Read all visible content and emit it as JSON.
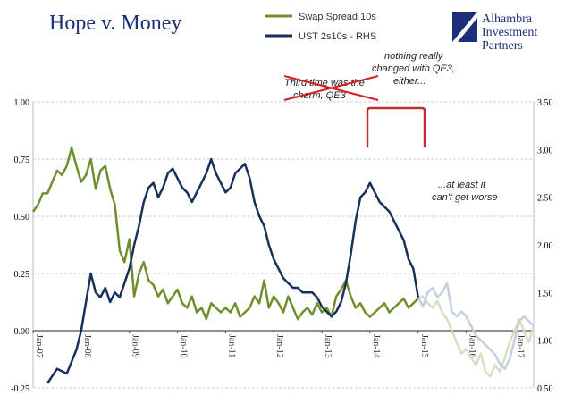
{
  "chart_data": {
    "type": "line",
    "title": "Hope v. Money",
    "xlabel": "",
    "ylabel": "",
    "x_ticks": [
      "Jan-07",
      "Jan-08",
      "Jan-09",
      "Jan-10",
      "Jan-11",
      "Jan-12",
      "Jan-13",
      "Jan-14",
      "Jan-15",
      "Jan-16",
      "Jan-17"
    ],
    "ylim_left": [
      -0.25,
      1.0
    ],
    "yticks_left": [
      "-0.25",
      "0.00",
      "0.25",
      "0.50",
      "0.75",
      "1.00"
    ],
    "ylim_right": [
      0.5,
      3.5
    ],
    "yticks_right": [
      "0.50",
      "1.00",
      "1.50",
      "2.00",
      "2.50",
      "3.00",
      "3.50"
    ],
    "legend": "top-center",
    "grid": "horizontal dashed",
    "series": [
      {
        "name": "Swap Spread 10s",
        "axis": "left",
        "color": "#6f8f2e",
        "faded_color": "#d6e0c0",
        "x": [
          2007.0,
          2007.1,
          2007.2,
          2007.3,
          2007.4,
          2007.5,
          2007.6,
          2007.7,
          2007.8,
          2007.9,
          2008.0,
          2008.1,
          2008.2,
          2008.3,
          2008.4,
          2008.5,
          2008.6,
          2008.7,
          2008.8,
          2008.9,
          2009.0,
          2009.1,
          2009.2,
          2009.3,
          2009.4,
          2009.5,
          2009.6,
          2009.7,
          2009.8,
          2009.9,
          2010.0,
          2010.1,
          2010.2,
          2010.3,
          2010.4,
          2010.5,
          2010.6,
          2010.7,
          2010.8,
          2010.9,
          2011.0,
          2011.1,
          2011.2,
          2011.3,
          2011.4,
          2011.5,
          2011.6,
          2011.7,
          2011.8,
          2011.9,
          2012.0,
          2012.1,
          2012.2,
          2012.3,
          2012.4,
          2012.5,
          2012.6,
          2012.7,
          2012.8,
          2012.9,
          2013.0,
          2013.1,
          2013.2,
          2013.3,
          2013.4,
          2013.5,
          2013.6,
          2013.7,
          2013.8,
          2013.9,
          2014.0,
          2014.1,
          2014.2,
          2014.3,
          2014.4,
          2014.5,
          2014.6,
          2014.7,
          2014.8,
          2014.9,
          2015.0,
          2015.1,
          2015.2,
          2015.3,
          2015.4,
          2015.5,
          2015.6,
          2015.7,
          2015.8,
          2015.9,
          2016.0,
          2016.1,
          2016.2,
          2016.3,
          2016.4,
          2016.5,
          2016.6,
          2016.7,
          2016.8,
          2016.9,
          2017.0,
          2017.1,
          2017.2,
          2017.3,
          2017.4
        ],
        "y": [
          0.52,
          0.55,
          0.6,
          0.6,
          0.65,
          0.7,
          0.68,
          0.72,
          0.8,
          0.72,
          0.65,
          0.68,
          0.75,
          0.62,
          0.7,
          0.72,
          0.62,
          0.55,
          0.35,
          0.3,
          0.4,
          0.15,
          0.25,
          0.3,
          0.22,
          0.2,
          0.15,
          0.18,
          0.12,
          0.15,
          0.18,
          0.12,
          0.1,
          0.15,
          0.08,
          0.1,
          0.05,
          0.12,
          0.1,
          0.08,
          0.1,
          0.08,
          0.12,
          0.06,
          0.08,
          0.1,
          0.15,
          0.12,
          0.22,
          0.1,
          0.15,
          0.12,
          0.08,
          0.15,
          0.1,
          0.05,
          0.08,
          0.1,
          0.07,
          0.12,
          0.08,
          0.1,
          0.06,
          0.15,
          0.18,
          0.22,
          0.15,
          0.1,
          0.12,
          0.08,
          0.06,
          0.08,
          0.1,
          0.12,
          0.08,
          0.1,
          0.12,
          0.14,
          0.1,
          0.12,
          0.14,
          0.15,
          0.12,
          0.1,
          0.13,
          0.08,
          0.05,
          0.0,
          -0.05,
          -0.1,
          -0.08,
          -0.12,
          -0.15,
          -0.1,
          -0.18,
          -0.2,
          -0.15,
          -0.18,
          -0.12,
          -0.05,
          0.0,
          0.05,
          0.0,
          -0.05,
          0.02
        ],
        "faded_from": 2015.0
      },
      {
        "name": "UST 2s10s - RHS",
        "axis": "right",
        "color": "#17315a",
        "faded_color": "#c5cede",
        "x": [
          2007.3,
          2007.5,
          2007.7,
          2007.9,
          2008.0,
          2008.1,
          2008.2,
          2008.3,
          2008.4,
          2008.5,
          2008.6,
          2008.7,
          2008.8,
          2008.9,
          2009.0,
          2009.1,
          2009.2,
          2009.3,
          2009.4,
          2009.5,
          2009.6,
          2009.7,
          2009.8,
          2009.9,
          2010.0,
          2010.1,
          2010.2,
          2010.3,
          2010.4,
          2010.5,
          2010.6,
          2010.7,
          2010.8,
          2010.9,
          2011.0,
          2011.1,
          2011.2,
          2011.3,
          2011.4,
          2011.5,
          2011.6,
          2011.7,
          2011.8,
          2011.9,
          2012.0,
          2012.1,
          2012.2,
          2012.3,
          2012.4,
          2012.5,
          2012.6,
          2012.7,
          2012.8,
          2012.9,
          2013.0,
          2013.1,
          2013.2,
          2013.3,
          2013.4,
          2013.5,
          2013.6,
          2013.7,
          2013.8,
          2013.9,
          2014.0,
          2014.1,
          2014.2,
          2014.3,
          2014.4,
          2014.5,
          2014.6,
          2014.7,
          2014.8,
          2014.9,
          2015.0,
          2015.1,
          2015.2,
          2015.3,
          2015.4,
          2015.5,
          2015.6,
          2015.7,
          2015.8,
          2015.9,
          2016.0,
          2016.1,
          2016.2,
          2016.3,
          2016.4,
          2016.5,
          2016.6,
          2016.7,
          2016.8,
          2016.9,
          2017.0,
          2017.1,
          2017.2,
          2017.3,
          2017.4
        ],
        "y": [
          0.55,
          0.7,
          0.65,
          0.9,
          1.1,
          1.4,
          1.7,
          1.5,
          1.45,
          1.55,
          1.4,
          1.5,
          1.45,
          1.6,
          1.75,
          2.0,
          2.2,
          2.45,
          2.6,
          2.65,
          2.5,
          2.6,
          2.75,
          2.8,
          2.7,
          2.6,
          2.55,
          2.45,
          2.55,
          2.65,
          2.75,
          2.9,
          2.75,
          2.65,
          2.55,
          2.6,
          2.75,
          2.8,
          2.85,
          2.7,
          2.45,
          2.3,
          2.2,
          2.0,
          1.85,
          1.75,
          1.65,
          1.6,
          1.55,
          1.55,
          1.5,
          1.5,
          1.5,
          1.45,
          1.35,
          1.3,
          1.25,
          1.3,
          1.4,
          1.6,
          1.9,
          2.25,
          2.5,
          2.55,
          2.65,
          2.55,
          2.45,
          2.4,
          2.35,
          2.25,
          2.15,
          2.05,
          1.85,
          1.75,
          1.45,
          1.35,
          1.5,
          1.55,
          1.45,
          1.5,
          1.6,
          1.3,
          1.25,
          1.3,
          1.25,
          1.15,
          1.05,
          1.0,
          0.95,
          0.9,
          0.85,
          0.75,
          0.7,
          0.8,
          1.0,
          1.2,
          1.25,
          1.2,
          1.15
        ],
        "faded_from": 2015.0
      }
    ]
  },
  "annotations": {
    "struck_note": "Third time was the charm, QE3",
    "qe3_note": "nothing really changed with QE3, either...",
    "worse_note": "...at least it can't get worse"
  },
  "logo": {
    "line1": "Alhambra",
    "line2": "Investment",
    "line3": "Partners"
  },
  "colors": {
    "title": "#1c2f7a",
    "swap": "#6f8f2e",
    "ust": "#17315a",
    "bracket": "#c0302b",
    "strike": "#d41f1f"
  }
}
